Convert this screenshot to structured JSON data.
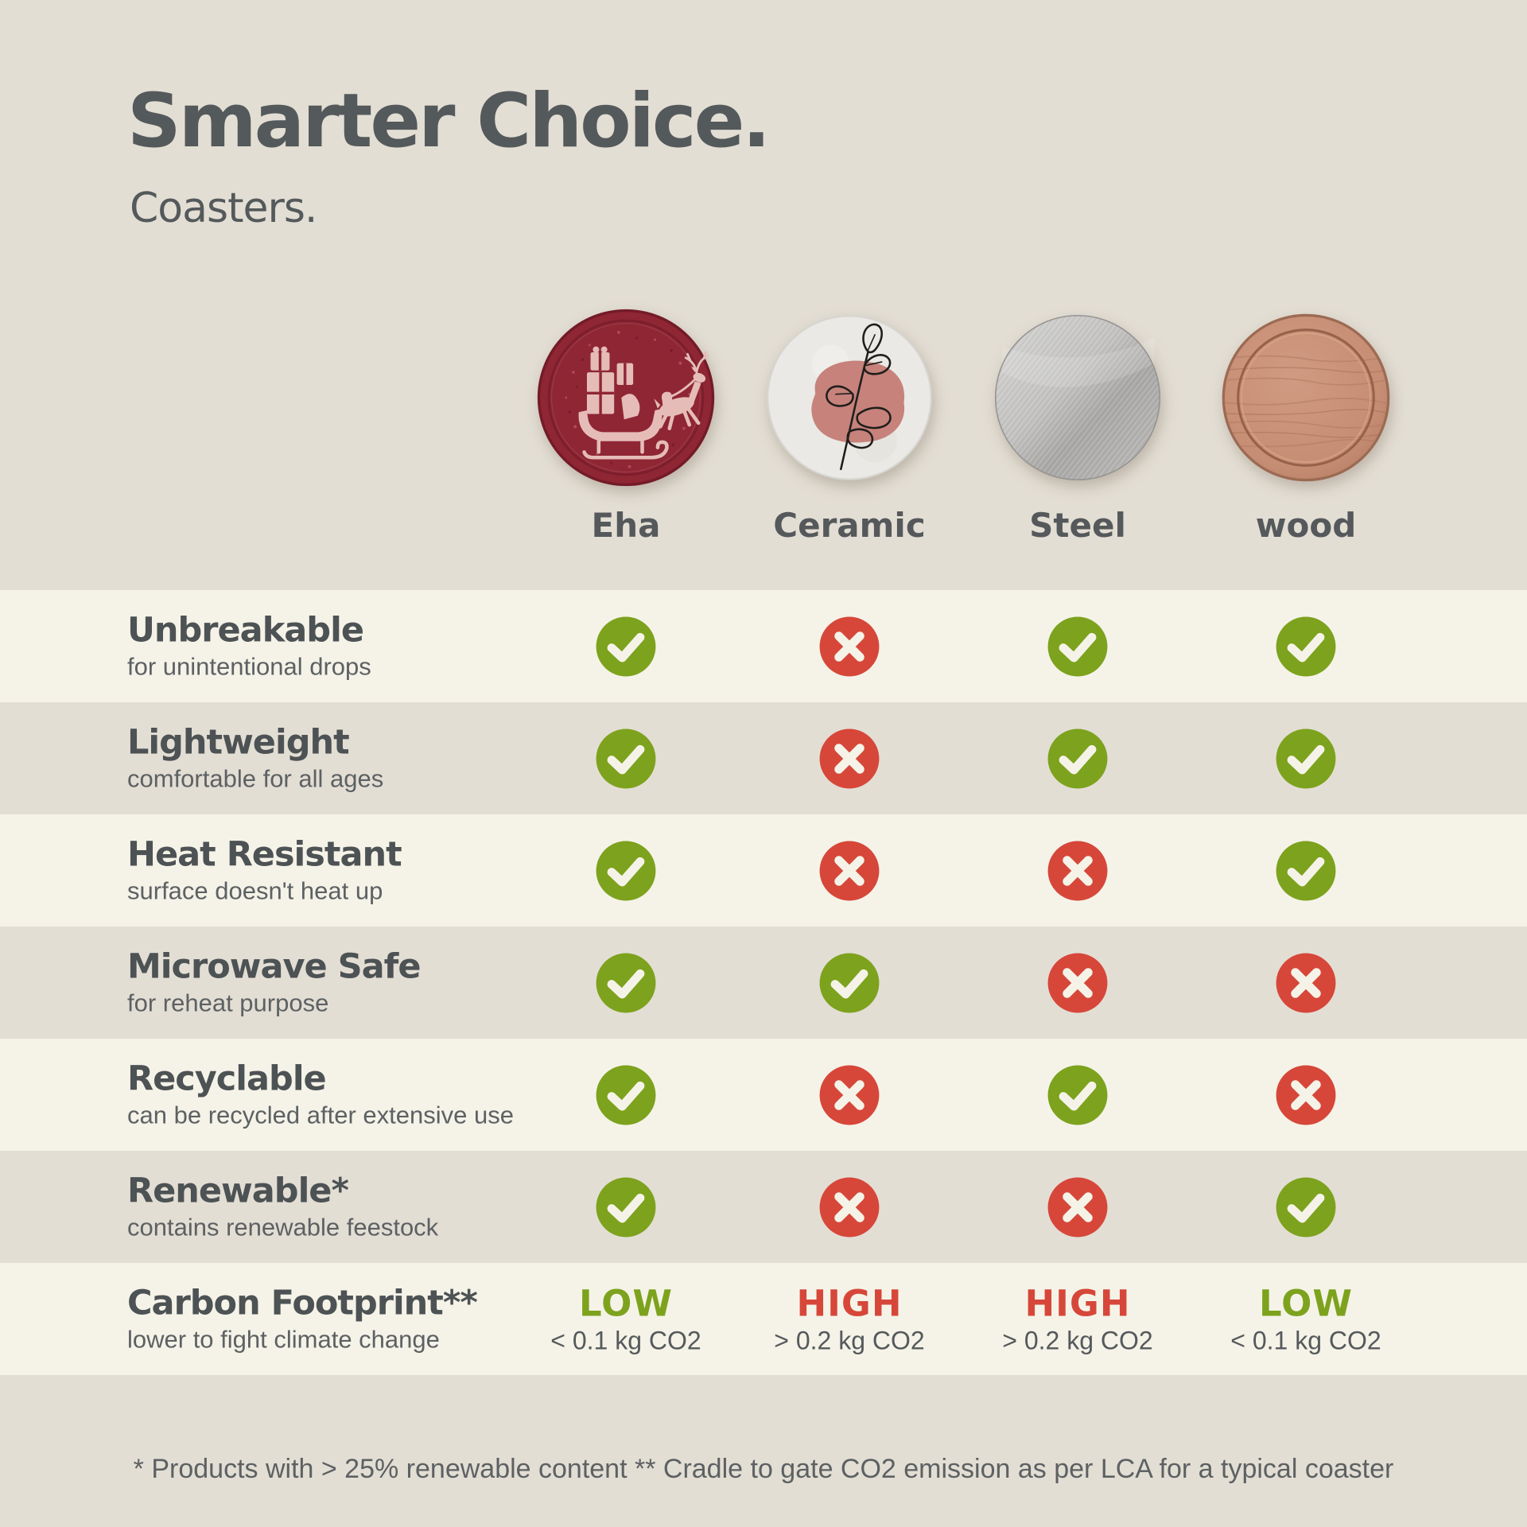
{
  "header": {
    "title": "Smarter Choice.",
    "subtitle": "Coasters."
  },
  "columns": [
    {
      "label": "Eha",
      "art": "eha",
      "art_name": "eha-coaster-image"
    },
    {
      "label": "Ceramic",
      "art": "ceramic",
      "art_name": "ceramic-coaster-image"
    },
    {
      "label": "Steel",
      "art": "steel",
      "art_name": "steel-coaster-image"
    },
    {
      "label": "wood",
      "art": "wood",
      "art_name": "wood-coaster-image"
    }
  ],
  "rows": [
    {
      "feature": "Unbreakable",
      "description": "for unintentional drops",
      "values": [
        true,
        false,
        true,
        true
      ]
    },
    {
      "feature": "Lightweight",
      "description": "comfortable for all ages",
      "values": [
        true,
        false,
        true,
        true
      ]
    },
    {
      "feature": "Heat Resistant",
      "description": "surface doesn't heat up",
      "values": [
        true,
        false,
        false,
        true
      ]
    },
    {
      "feature": "Microwave Safe",
      "description": "for reheat purpose",
      "values": [
        true,
        true,
        false,
        false
      ]
    },
    {
      "feature": "Recyclable",
      "description": "can be recycled after extensive use",
      "values": [
        true,
        false,
        true,
        false
      ]
    },
    {
      "feature": "Renewable*",
      "description": "contains renewable feestock",
      "values": [
        true,
        false,
        false,
        true
      ]
    },
    {
      "feature": "Carbon Footprint**",
      "description": "lower to fight climate change",
      "values": [
        {
          "level": "LOW",
          "detail": "< 0.1 kg CO2",
          "tone": "green"
        },
        {
          "level": "HIGH",
          "detail": "> 0.2 kg CO2",
          "tone": "red"
        },
        {
          "level": "HIGH",
          "detail": "> 0.2 kg CO2",
          "tone": "red"
        },
        {
          "level": "LOW",
          "detail": "< 0.1 kg CO2",
          "tone": "green"
        }
      ]
    }
  ],
  "footer": {
    "note": "* Products with > 25% renewable content  ** Cradle to gate CO2 emission as per LCA for a typical coaster"
  },
  "icons": {
    "check": "check-icon",
    "cross": "cross-icon"
  },
  "colors": {
    "background": "#e3ded4",
    "row_light": "#f5f3e8",
    "green": "#7da21d",
    "red": "#d6473a",
    "heading_text": "#54595b",
    "body_text": "#5d6163"
  }
}
